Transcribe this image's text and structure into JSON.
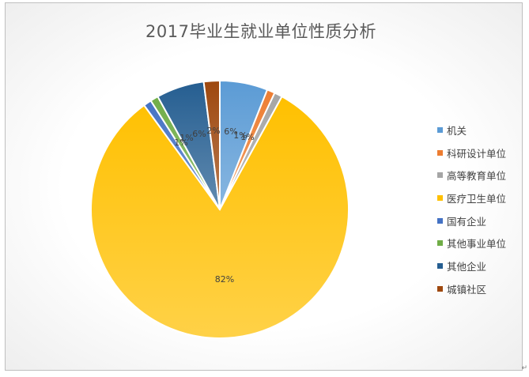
{
  "chart_data": {
    "type": "pie",
    "title": "2017毕业生就业单位性质分析",
    "categories": [
      "机关",
      "科研设计单位",
      "高等教育单位",
      "医疗卫生单位",
      "国有企业",
      "其他事业单位",
      "其他企业",
      "城镇社区"
    ],
    "values": [
      6,
      1,
      1,
      82,
      1,
      1,
      6,
      2
    ],
    "data_labels": [
      "6%",
      "1%",
      "1%",
      "82%",
      "1%",
      "1%",
      "6%",
      "2%"
    ],
    "colors": [
      "#5b9bd5",
      "#ed7d31",
      "#a5a5a5",
      "#ffc000",
      "#4472c4",
      "#70ad47",
      "#255e91",
      "#9e480e"
    ],
    "legend_position": "right"
  },
  "corner_mark": "↵"
}
